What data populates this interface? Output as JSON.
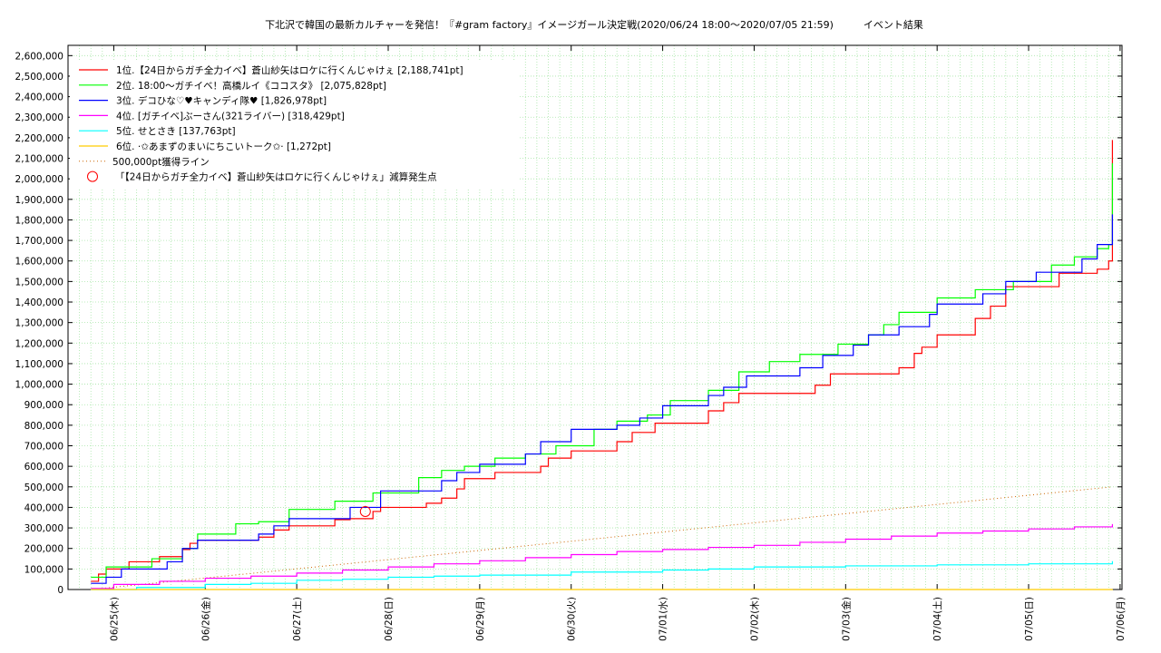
{
  "chart_data": {
    "type": "line",
    "title": "下北沢で韓国の最新カルチャーを発信！『#gram factory』イメージガール決定戦(2020/06/24 18:00〜2020/07/05 21:59)　　　イベント結果",
    "xlabel": "",
    "ylabel": "",
    "ylim": [
      0,
      2650000
    ],
    "x_range": [
      "06/24 12:00",
      "07/06 00:30"
    ],
    "x_ticks": [
      "06/25(木)",
      "06/26(金)",
      "06/27(土)",
      "06/28(日)",
      "06/29(月)",
      "06/30(火)",
      "07/01(水)",
      "07/02(木)",
      "07/03(金)",
      "07/04(土)",
      "07/05(日)",
      "07/06(月)"
    ],
    "y_ticks": [
      "0",
      "100,000",
      "200,000",
      "300,000",
      "400,000",
      "500,000",
      "600,000",
      "700,000",
      "800,000",
      "900,000",
      "1,000,000",
      "1,100,000",
      "1,200,000",
      "1,300,000",
      "1,400,000",
      "1,500,000",
      "1,600,000",
      "1,700,000",
      "1,800,000",
      "1,900,000",
      "2,000,000",
      "2,100,000",
      "2,200,000",
      "2,300,000",
      "2,400,000",
      "2,500,000",
      "2,600,000"
    ],
    "grid": true,
    "legend_position": "top-left",
    "series": [
      {
        "name": "1位.【24日からガチ全力イベ】蒼山紗矢はロケに行くんじゃけぇ [2,188,741pt]",
        "color": "#ff0000",
        "x": [
          "06/24 18:00",
          "06/24 20:00",
          "06/24 22:00",
          "06/25 04:00",
          "06/25 12:00",
          "06/25 18:00",
          "06/25 20:00",
          "06/25 22:00",
          "06/26 14:00",
          "06/26 18:00",
          "06/26 22:00",
          "06/27 10:00",
          "06/27 14:00",
          "06/27 20:00",
          "06/27 22:00",
          "06/28 10:00",
          "06/28 14:00",
          "06/28 18:00",
          "06/28 20:00",
          "06/29 04:00",
          "06/29 16:00",
          "06/29 18:00",
          "06/30 00:00",
          "06/30 12:00",
          "06/30 16:00",
          "06/30 22:00",
          "07/01 12:00",
          "07/01 16:00",
          "07/01 20:00",
          "07/02 16:00",
          "07/02 20:00",
          "07/03 14:00",
          "07/03 18:00",
          "07/03 20:00",
          "07/04 00:00",
          "07/04 10:00",
          "07/04 14:00",
          "07/04 18:00",
          "07/05 08:00",
          "07/05 18:00",
          "07/05 21:00",
          "07/05 21:59"
        ],
        "y": [
          40000,
          75000,
          100000,
          135000,
          160000,
          195000,
          225000,
          240000,
          255000,
          290000,
          310000,
          340000,
          345000,
          380000,
          400000,
          420000,
          445000,
          490000,
          540000,
          570000,
          600000,
          640000,
          675000,
          720000,
          765000,
          810000,
          870000,
          910000,
          955000,
          995000,
          1050000,
          1080000,
          1150000,
          1180000,
          1240000,
          1320000,
          1380000,
          1475000,
          1540000,
          1560000,
          1600000,
          2188741
        ]
      },
      {
        "name": "2位. 18:00〜ガチイベ！高橋ルイ《ココスタ》 [2,075,828pt]",
        "color": "#00ff00",
        "x": [
          "06/24 18:00",
          "06/24 22:00",
          "06/25 10:00",
          "06/25 18:00",
          "06/25 22:00",
          "06/26 08:00",
          "06/26 14:00",
          "06/26 22:00",
          "06/27 10:00",
          "06/27 20:00",
          "06/28 08:00",
          "06/28 14:00",
          "06/28 20:00",
          "06/29 04:00",
          "06/29 12:00",
          "06/29 20:00",
          "06/30 06:00",
          "06/30 12:00",
          "06/30 20:00",
          "07/01 02:00",
          "07/01 12:00",
          "07/01 20:00",
          "07/02 04:00",
          "07/02 12:00",
          "07/02 22:00",
          "07/03 06:00",
          "07/03 10:00",
          "07/03 14:00",
          "07/04 00:00",
          "07/04 10:00",
          "07/04 20:00",
          "07/05 06:00",
          "07/05 12:00",
          "07/05 18:00",
          "07/05 21:00",
          "07/05 21:59"
        ],
        "y": [
          60000,
          110000,
          150000,
          200000,
          270000,
          320000,
          330000,
          390000,
          430000,
          470000,
          545000,
          580000,
          600000,
          640000,
          660000,
          700000,
          780000,
          820000,
          850000,
          920000,
          970000,
          1060000,
          1110000,
          1145000,
          1195000,
          1240000,
          1290000,
          1350000,
          1420000,
          1460000,
          1500000,
          1580000,
          1620000,
          1660000,
          1680000,
          2075828
        ]
      },
      {
        "name": "3位. デコひな♡♥キャンディ隊♥ [1,826,978pt]",
        "color": "#0000ff",
        "x": [
          "06/24 18:00",
          "06/24 22:00",
          "06/25 02:00",
          "06/25 14:00",
          "06/25 18:00",
          "06/25 22:00",
          "06/26 14:00",
          "06/26 18:00",
          "06/26 22:00",
          "06/27 14:00",
          "06/27 22:00",
          "06/28 14:00",
          "06/28 18:00",
          "06/29 00:00",
          "06/29 12:00",
          "06/29 16:00",
          "06/30 00:00",
          "06/30 12:00",
          "06/30 18:00",
          "07/01 00:00",
          "07/01 12:00",
          "07/01 16:00",
          "07/01 22:00",
          "07/02 12:00",
          "07/02 18:00",
          "07/03 02:00",
          "07/03 06:00",
          "07/03 14:00",
          "07/03 22:00",
          "07/04 00:00",
          "07/04 12:00",
          "07/04 18:00",
          "07/05 02:00",
          "07/05 14:00",
          "07/05 18:00",
          "07/05 21:59"
        ],
        "y": [
          30000,
          60000,
          100000,
          135000,
          200000,
          240000,
          270000,
          310000,
          345000,
          400000,
          480000,
          530000,
          570000,
          610000,
          660000,
          720000,
          780000,
          800000,
          835000,
          895000,
          945000,
          985000,
          1040000,
          1080000,
          1140000,
          1190000,
          1240000,
          1280000,
          1340000,
          1390000,
          1440000,
          1500000,
          1545000,
          1610000,
          1680000,
          1826978
        ]
      },
      {
        "name": "4位. [ガチイベ]ぶーさん(321ライバー) [318,429pt]",
        "color": "#ff00ff",
        "x": [
          "06/24 18:00",
          "06/25 00:00",
          "06/25 12:00",
          "06/26 00:00",
          "06/26 12:00",
          "06/27 00:00",
          "06/27 12:00",
          "06/28 00:00",
          "06/28 12:00",
          "06/29 00:00",
          "06/29 12:00",
          "06/30 00:00",
          "06/30 12:00",
          "07/01 00:00",
          "07/01 12:00",
          "07/02 00:00",
          "07/02 12:00",
          "07/03 00:00",
          "07/03 12:00",
          "07/04 00:00",
          "07/04 12:00",
          "07/05 00:00",
          "07/05 12:00",
          "07/05 21:59"
        ],
        "y": [
          5000,
          25000,
          40000,
          55000,
          65000,
          80000,
          95000,
          110000,
          125000,
          140000,
          155000,
          170000,
          185000,
          195000,
          205000,
          215000,
          230000,
          245000,
          260000,
          275000,
          285000,
          295000,
          305000,
          318429
        ]
      },
      {
        "name": "5位. せとさき [137,763pt]",
        "color": "#00ffff",
        "x": [
          "06/24 18:00",
          "06/25 06:00",
          "06/26 00:00",
          "06/26 12:00",
          "06/27 00:00",
          "06/27 12:00",
          "06/28 00:00",
          "06/28 12:00",
          "06/29 00:00",
          "06/30 00:00",
          "07/01 00:00",
          "07/01 12:00",
          "07/02 00:00",
          "07/03 00:00",
          "07/04 00:00",
          "07/05 00:00",
          "07/05 21:59"
        ],
        "y": [
          0,
          10000,
          25000,
          30000,
          45000,
          50000,
          60000,
          65000,
          70000,
          85000,
          95000,
          100000,
          110000,
          115000,
          120000,
          125000,
          137763
        ]
      },
      {
        "name": "6位. ·✩あまずのまいにちこいトーク✩· [1,272pt]",
        "color": "#ffcc00",
        "x": [
          "06/24 18:00",
          "07/05 21:59"
        ],
        "y": [
          0,
          1272
        ]
      }
    ],
    "reference_line": {
      "name": "500,000pt獲得ライン",
      "color": "#cc6600",
      "x": [
        "06/24 18:00",
        "07/05 21:59"
      ],
      "y": [
        0,
        500000
      ]
    },
    "markers": [
      {
        "name": "「【24日からガチ全力イベ】蒼山紗矢はロケに行くんじゃけぇ」減算発生点",
        "color": "#ff0000",
        "x": "06/27 18:00",
        "y": 380000
      }
    ]
  }
}
